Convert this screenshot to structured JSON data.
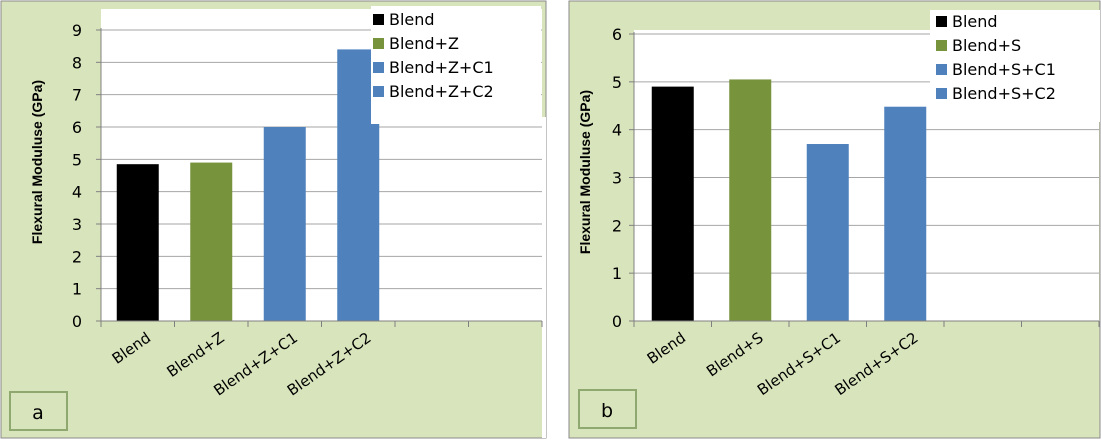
{
  "colors": {
    "panel_bg": "#d8e4bc",
    "plot_bg": "#ffffff",
    "black": "#000000",
    "green": "#77933c",
    "blue": "#4f81bd",
    "grid": "#a6a6a6"
  },
  "chart_data": [
    {
      "type": "bar",
      "panel_label": "a",
      "ylabel": "Flexural Moduluse  (GPa)",
      "xlabel": "",
      "categories": [
        "Blend",
        "Blend+Z",
        "Blend+Z+C1",
        "Blend+Z+C2",
        "",
        ""
      ],
      "values": [
        4.85,
        4.9,
        6.0,
        8.4,
        null,
        null
      ],
      "bar_colors": [
        "#000000",
        "#77933c",
        "#4f81bd",
        "#4f81bd"
      ],
      "ylim": [
        0,
        9
      ],
      "yticks": [
        "0",
        "1",
        "2",
        "3",
        "4",
        "5",
        "6",
        "7",
        "8",
        "9"
      ],
      "grid": "horizontal",
      "legend_position": "top-right",
      "legend": [
        {
          "label": "Blend",
          "color": "#000000"
        },
        {
          "label": "Blend+Z",
          "color": "#77933c"
        },
        {
          "label": "Blend+Z+C1",
          "color": "#4f81bd"
        },
        {
          "label": "Blend+Z+C2",
          "color": "#4f81bd"
        }
      ]
    },
    {
      "type": "bar",
      "panel_label": "b",
      "ylabel": "Flexural Moduluse  (GPa)",
      "xlabel": "",
      "categories": [
        "Blend",
        "Blend+S",
        "Blend+S+C1",
        "Blend+S+C2",
        "",
        ""
      ],
      "values": [
        4.9,
        5.05,
        3.7,
        4.48,
        null,
        null
      ],
      "bar_colors": [
        "#000000",
        "#77933c",
        "#4f81bd",
        "#4f81bd"
      ],
      "ylim": [
        0,
        6
      ],
      "yticks": [
        "0",
        "1",
        "2",
        "3",
        "4",
        "5",
        "6"
      ],
      "grid": "horizontal",
      "legend_position": "top-right",
      "legend": [
        {
          "label": "Blend",
          "color": "#000000"
        },
        {
          "label": "Blend+S",
          "color": "#77933c"
        },
        {
          "label": "Blend+S+C1",
          "color": "#4f81bd"
        },
        {
          "label": "Blend+S+C2",
          "color": "#4f81bd"
        }
      ]
    }
  ]
}
